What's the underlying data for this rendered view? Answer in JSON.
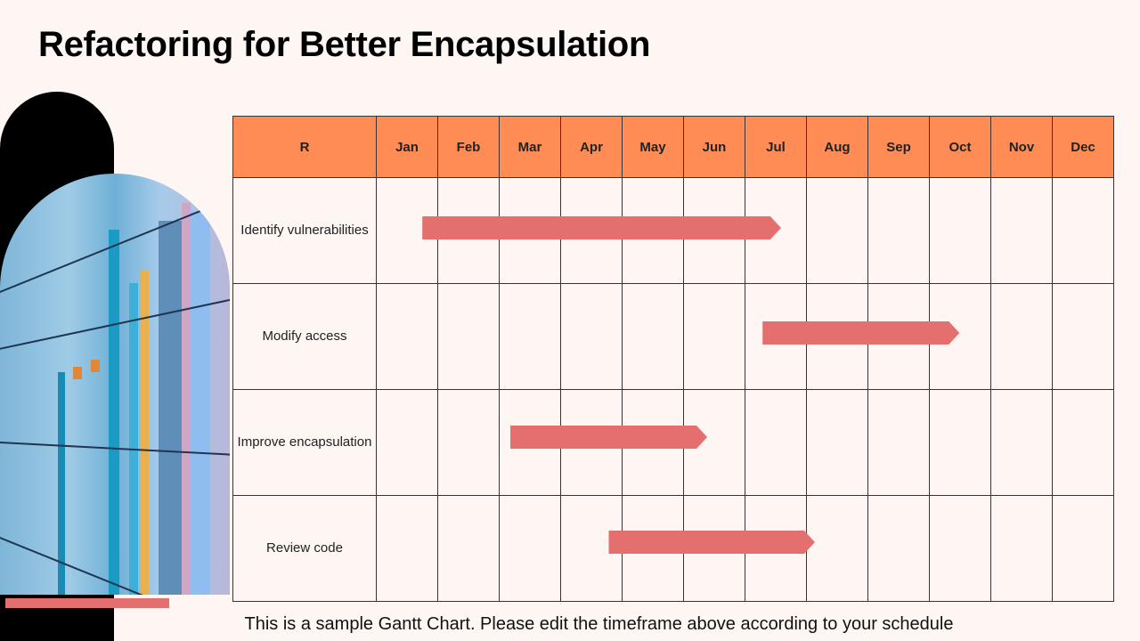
{
  "title": "Refactoring for Better Encapsulation",
  "chart_data": {
    "type": "gantt",
    "header_first": "R",
    "months": [
      "Jan",
      "Feb",
      "Mar",
      "Apr",
      "May",
      "Jun",
      "Jul",
      "Aug",
      "Sep",
      "Oct",
      "Nov",
      "Dec"
    ],
    "tasks": [
      {
        "label": "Identify vulnerabilities",
        "start": 0.77,
        "end": 6.6
      },
      {
        "label": "Modify access",
        "start": 6.3,
        "end": 9.5
      },
      {
        "label": "Improve encapsulation",
        "start": 2.2,
        "end": 5.4
      },
      {
        "label": "Review code",
        "start": 3.8,
        "end": 7.15
      }
    ],
    "bar_color": "#e46f6f",
    "header_color": "#ff8c55"
  },
  "footer": "This is a sample Gantt Chart. Please edit the timeframe above according to your schedule"
}
